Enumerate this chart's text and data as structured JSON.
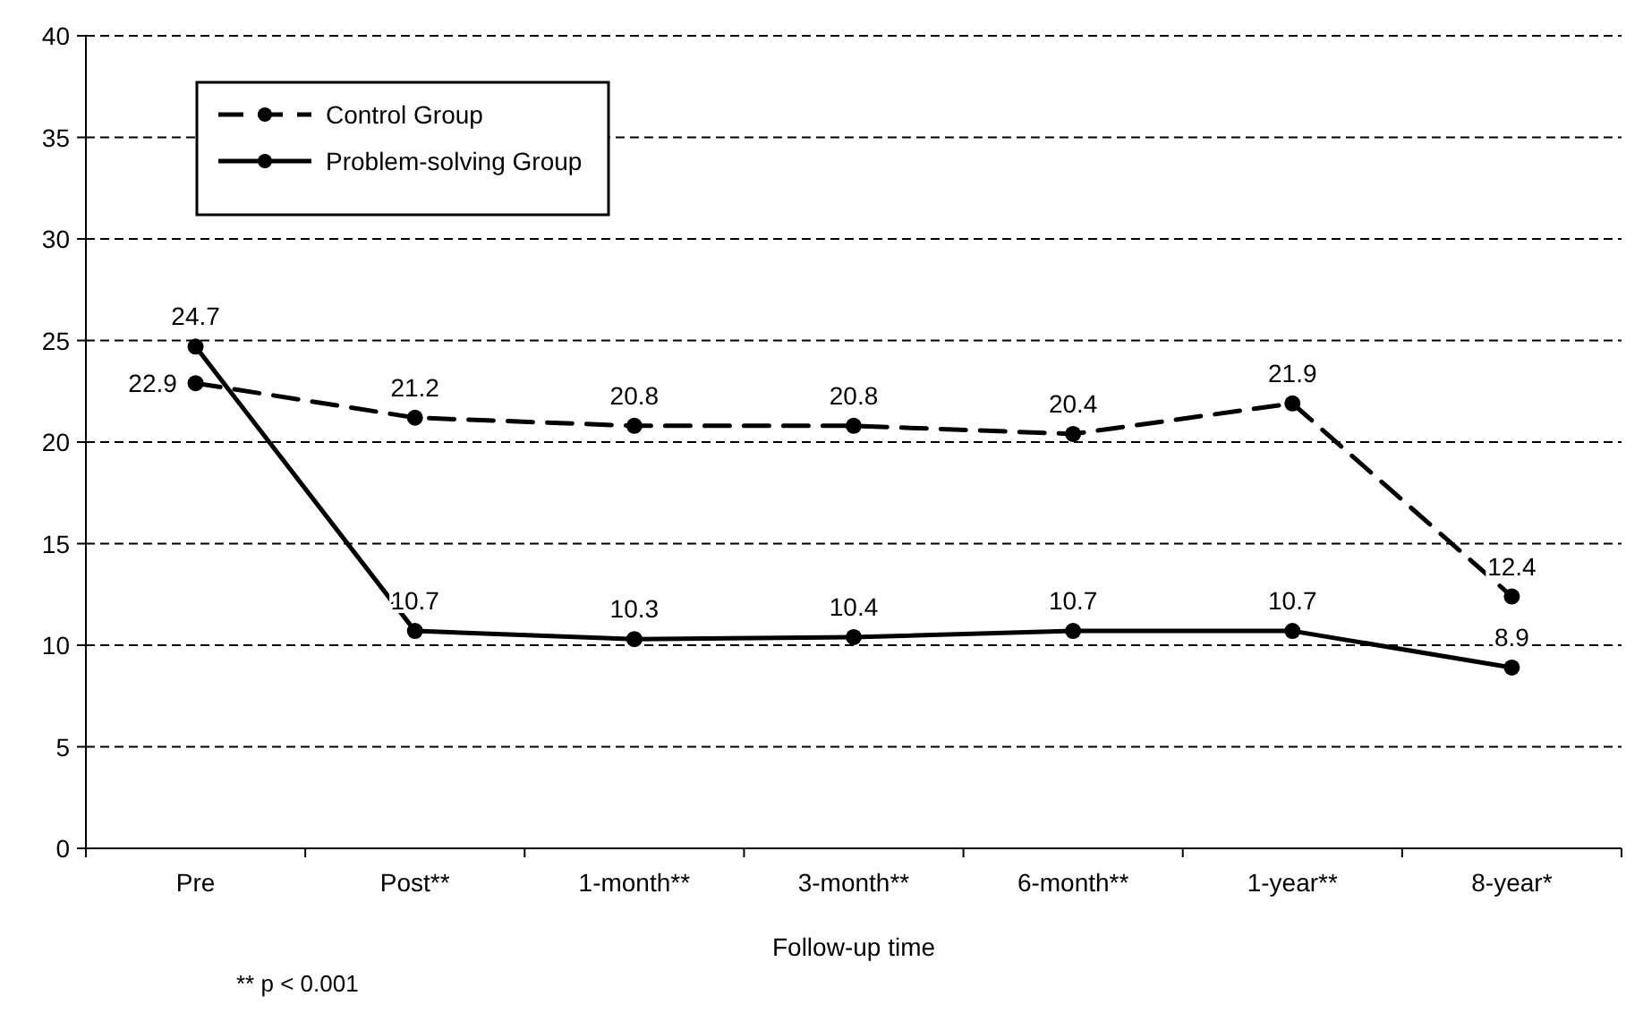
{
  "chart_data": {
    "type": "line",
    "xlabel": "Follow-up time",
    "categories": [
      "Pre",
      "Post**",
      "1-month**",
      "3-month**",
      "6-month**",
      "1-year**",
      "8-year*"
    ],
    "series": [
      {
        "name": "Control Group",
        "color": "#000000",
        "line_style": "dashed",
        "values": [
          22.9,
          21.2,
          20.8,
          20.8,
          20.4,
          21.9,
          12.4
        ]
      },
      {
        "name": "Problem-solving Group",
        "color": "#000000",
        "line_style": "solid",
        "values": [
          24.7,
          10.7,
          10.3,
          10.4,
          10.7,
          10.7,
          8.9
        ]
      }
    ],
    "ylim": [
      0,
      40
    ],
    "yticks": [
      0,
      5,
      10,
      15,
      20,
      25,
      30,
      35,
      40
    ],
    "grid": "y",
    "legend": "top left",
    "marker": "circle",
    "data_labels": true,
    "annotations": [
      "** p < 0.001"
    ]
  }
}
